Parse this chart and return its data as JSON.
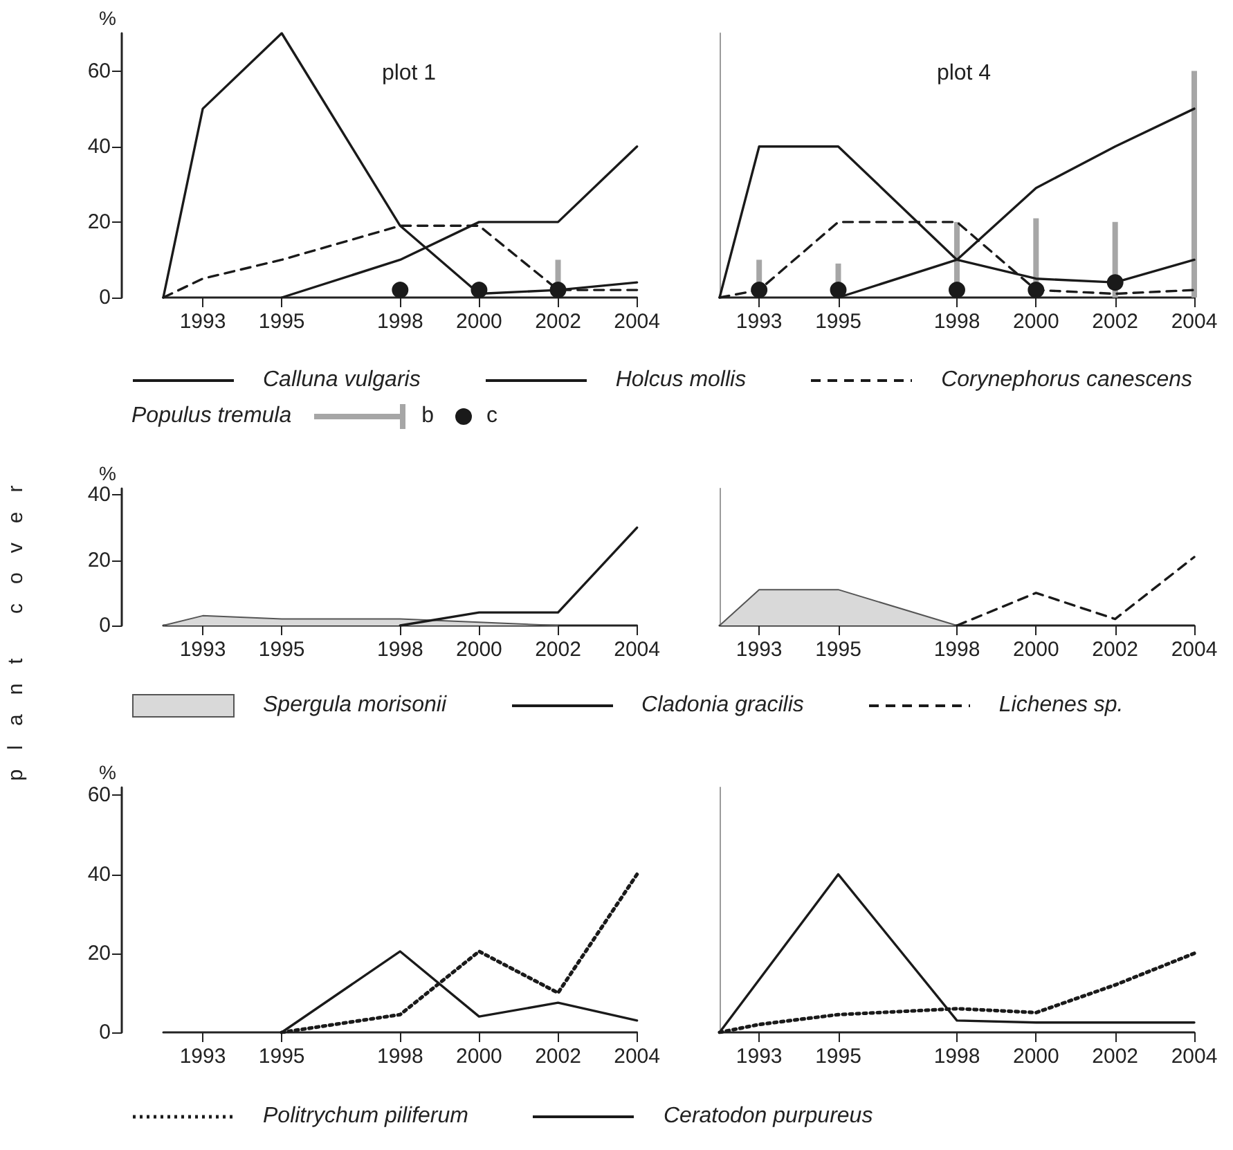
{
  "chart_data": [
    {
      "type": "line",
      "title": "plot 1",
      "ylabel": "%",
      "xlim": [
        1992,
        2004
      ],
      "xticks": [
        1993,
        1995,
        1998,
        2000,
        2002,
        2004
      ],
      "ylim": [
        0,
        70
      ],
      "yticks": [
        0,
        20,
        40,
        60
      ],
      "marker": "none",
      "legend": "bottom",
      "legend_title": "Populus tremula",
      "series": [
        {
          "name": "Calluna vulgaris",
          "color": "#1a1a1a",
          "x": [
            1995,
            1998,
            2000,
            2002,
            2004
          ],
          "values": [
            0,
            10,
            20,
            20,
            40
          ]
        },
        {
          "name": "Holcus mollis",
          "color": "#1a1a1a",
          "x": [
            1992,
            1993,
            1995,
            1998,
            2000,
            2002,
            2004
          ],
          "values": [
            0,
            50,
            70,
            19,
            1,
            2,
            4
          ]
        },
        {
          "name": "Corynephorus canescens",
          "color": "#1a1a1a",
          "line_style": "dashed",
          "x": [
            1992,
            1993,
            1995,
            1998,
            2000,
            2002,
            2004
          ],
          "values": [
            0,
            5,
            10,
            19,
            19,
            2,
            2
          ]
        },
        {
          "name": "b",
          "type": "bar",
          "color": "#a6a6a6",
          "x": [
            2002
          ],
          "values": [
            10
          ]
        },
        {
          "name": "c",
          "type": "scatter",
          "marker": "circle",
          "color": "#1a1a1a",
          "x": [
            1998,
            2000,
            2002
          ],
          "values": [
            2,
            2,
            2
          ]
        }
      ]
    },
    {
      "type": "line",
      "title": "plot 4",
      "xlim": [
        1992,
        2004
      ],
      "xticks": [
        1993,
        1995,
        1998,
        2000,
        2002,
        2004
      ],
      "ylim": [
        0,
        70
      ],
      "yticks": [
        0,
        20,
        40,
        60
      ],
      "tick_labels": "x",
      "marker": "none",
      "legend": "bottom",
      "series": [
        {
          "name": "Calluna vulgaris",
          "color": "#1a1a1a",
          "x": [
            1995,
            1998,
            2000,
            2002,
            2004
          ],
          "values": [
            0,
            10,
            29,
            40,
            50
          ]
        },
        {
          "name": "Holcus mollis",
          "color": "#1a1a1a",
          "x": [
            1992,
            1993,
            1995,
            1998,
            2000,
            2002,
            2004
          ],
          "values": [
            0,
            40,
            40,
            10,
            5,
            4,
            10
          ]
        },
        {
          "name": "Corynephorus canescens",
          "color": "#1a1a1a",
          "line_style": "dashed",
          "x": [
            1992,
            1993,
            1995,
            1998,
            2000,
            2002,
            2004
          ],
          "values": [
            0,
            2,
            20,
            20,
            2,
            1,
            2
          ]
        },
        {
          "name": "b",
          "type": "bar",
          "color": "#a6a6a6",
          "x": [
            1993,
            1995,
            1998,
            2000,
            2002,
            2004
          ],
          "values": [
            10,
            9,
            20,
            21,
            20,
            60
          ]
        },
        {
          "name": "c",
          "type": "scatter",
          "marker": "circle",
          "color": "#1a1a1a",
          "x": [
            1993,
            1995,
            1998,
            2000,
            2002
          ],
          "values": [
            2,
            2,
            2,
            2,
            4
          ]
        }
      ]
    },
    {
      "type": "line",
      "ylabel": "%",
      "annotations": [
        "plant cover"
      ],
      "xlim": [
        1992,
        2004
      ],
      "xticks": [
        1993,
        1995,
        1998,
        2000,
        2002,
        2004
      ],
      "ylim": [
        0,
        42
      ],
      "yticks": [
        0,
        20,
        40
      ],
      "marker": "none",
      "legend": "bottom",
      "series": [
        {
          "name": "Spergula morisonii",
          "type": "area",
          "color": "#d9d9d9",
          "x": [
            1992,
            1993,
            1995,
            1998,
            2000,
            2002
          ],
          "values": [
            0,
            3,
            2,
            2,
            1,
            0
          ]
        },
        {
          "name": "Cladonia gracilis",
          "color": "#1a1a1a",
          "x": [
            1998,
            2000,
            2002,
            2004
          ],
          "values": [
            0,
            4,
            4,
            30
          ]
        }
      ]
    },
    {
      "type": "line",
      "xlim": [
        1992,
        2004
      ],
      "xticks": [
        1993,
        1995,
        1998,
        2000,
        2002,
        2004
      ],
      "ylim": [
        0,
        42
      ],
      "yticks": [
        0,
        20,
        40
      ],
      "tick_labels": "x",
      "marker": "none",
      "legend": "bottom",
      "series": [
        {
          "name": "Spergula morisonii",
          "type": "area",
          "color": "#d9d9d9",
          "x": [
            1992,
            1993,
            1995,
            1998
          ],
          "values": [
            0,
            11,
            11,
            0
          ]
        },
        {
          "name": "Lichenes sp.",
          "color": "#1a1a1a",
          "line_style": "dashed",
          "x": [
            1998,
            2000,
            2002,
            2004
          ],
          "values": [
            0,
            10,
            2,
            21
          ]
        }
      ]
    },
    {
      "type": "line",
      "ylabel": "%",
      "xlim": [
        1992,
        2004
      ],
      "xticks": [
        1993,
        1995,
        1998,
        2000,
        2002,
        2004
      ],
      "ylim": [
        0,
        62
      ],
      "yticks": [
        0,
        20,
        40,
        60
      ],
      "marker": "none",
      "legend": "bottom",
      "series": [
        {
          "name": "Politrychum piliferum",
          "color": "#1a1a1a",
          "line_style": "dotted",
          "x": [
            1995,
            1998,
            2000,
            2002,
            2004
          ],
          "values": [
            0,
            4.5,
            20.5,
            10,
            40
          ]
        },
        {
          "name": "Ceratodon purpureus",
          "color": "#1a1a1a",
          "x": [
            1995,
            1998,
            2000,
            2002,
            2004
          ],
          "values": [
            0,
            20.5,
            4,
            7.5,
            3
          ]
        }
      ]
    },
    {
      "type": "line",
      "xlim": [
        1992,
        2004
      ],
      "xticks": [
        1993,
        1995,
        1998,
        2000,
        2002,
        2004
      ],
      "ylim": [
        0,
        62
      ],
      "yticks": [
        0,
        20,
        40,
        60
      ],
      "tick_labels": "x",
      "marker": "none",
      "legend": "bottom",
      "series": [
        {
          "name": "Politrychum piliferum",
          "color": "#1a1a1a",
          "line_style": "dotted",
          "x": [
            1992,
            1993,
            1995,
            1998,
            2000,
            2002,
            2004
          ],
          "values": [
            0,
            2,
            4.5,
            6,
            5,
            12,
            20
          ]
        },
        {
          "name": "Ceratodon purpureus",
          "color": "#1a1a1a",
          "x": [
            1992,
            1995,
            1998,
            2000,
            2002,
            2004
          ],
          "values": [
            0,
            40,
            3,
            2.5,
            2.5,
            2.5
          ]
        }
      ]
    }
  ]
}
